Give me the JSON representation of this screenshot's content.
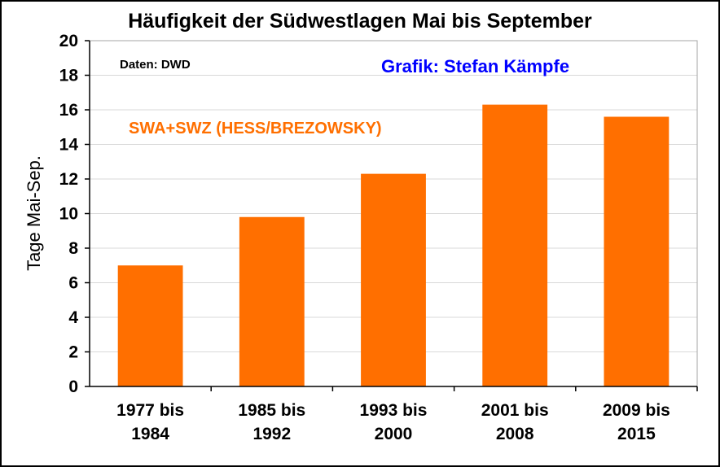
{
  "chart_data": {
    "type": "bar",
    "title": "Häufigkeit der Südwestlagen Mai bis September",
    "ylabel": "Tage Mai-Sep.",
    "xlabel": "",
    "categories": [
      [
        "1977 bis",
        "1984"
      ],
      [
        "1985 bis",
        "1992"
      ],
      [
        "1993 bis",
        "2000"
      ],
      [
        "2001 bis",
        "2008"
      ],
      [
        "2009 bis",
        "2015"
      ]
    ],
    "series": [
      {
        "values": [
          7.0,
          9.8,
          12.3,
          16.3,
          15.6
        ],
        "color": "#ff6f00"
      }
    ],
    "ylim": [
      0,
      20
    ],
    "yticks": [
      0,
      2,
      4,
      6,
      8,
      10,
      12,
      14,
      16,
      18,
      20
    ],
    "grid": true,
    "annotations": [
      {
        "text": "Daten: DWD",
        "color": "#000000"
      },
      {
        "text": "Grafik: Stefan Kämpfe",
        "color": "#0000ff"
      },
      {
        "text": "SWA+SWZ (HESS/BREZOWSKY)",
        "color": "#ff6f00"
      }
    ]
  }
}
